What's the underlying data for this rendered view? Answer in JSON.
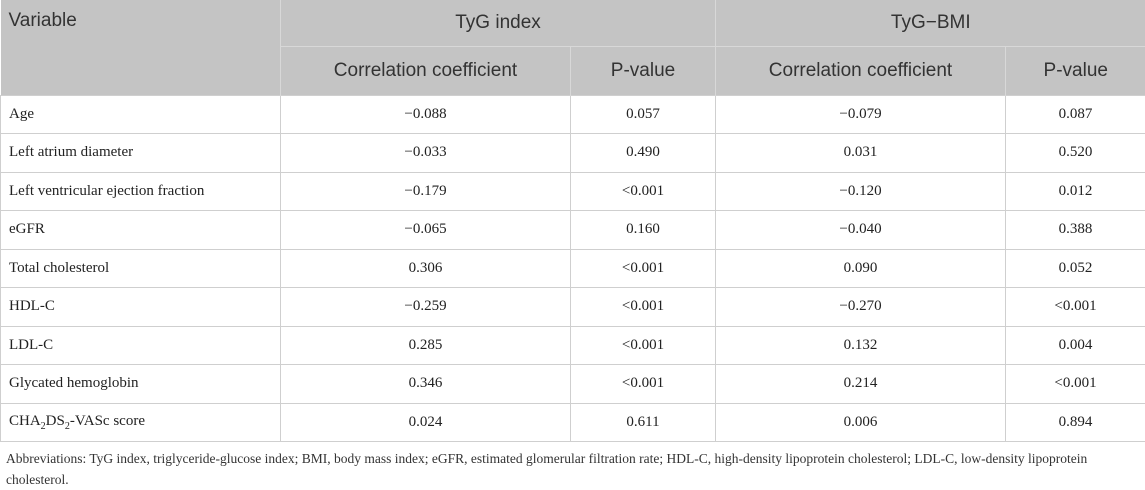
{
  "table": {
    "header": {
      "variable": "Variable",
      "groups": [
        "TyG index",
        "TyG−BMI"
      ],
      "subheaders": [
        "Correlation coefficient",
        "P-value",
        "Correlation coefficient",
        "P-value"
      ]
    },
    "rows": [
      [
        "Age",
        "−0.088",
        "0.057",
        "−0.079",
        "0.087"
      ],
      [
        "Left atrium diameter",
        "−0.033",
        "0.490",
        "0.031",
        "0.520"
      ],
      [
        "Left ventricular ejection fraction",
        "−0.179",
        "<0.001",
        "−0.120",
        "0.012"
      ],
      [
        "eGFR",
        "−0.065",
        "0.160",
        "−0.040",
        "0.388"
      ],
      [
        "Total cholesterol",
        "0.306",
        "<0.001",
        "0.090",
        "0.052"
      ],
      [
        "HDL-C",
        "−0.259",
        "<0.001",
        "−0.270",
        "<0.001"
      ],
      [
        "LDL-C",
        "0.285",
        "<0.001",
        "0.132",
        "0.004"
      ],
      [
        "Glycated hemoglobin",
        "0.346",
        "<0.001",
        "0.214",
        "<0.001"
      ],
      [
        [
          "CHA",
          "2",
          "DS",
          "2",
          "-VASc score"
        ],
        "0.024",
        "0.611",
        "0.006",
        "0.894"
      ]
    ]
  },
  "footnote": "Abbreviations: TyG index, triglyceride-glucose index; BMI, body mass index; eGFR, estimated glomerular filtration rate; HDL-C, high-density lipoprotein cholesterol; LDL-C, low-density lipoprotein cholesterol."
}
